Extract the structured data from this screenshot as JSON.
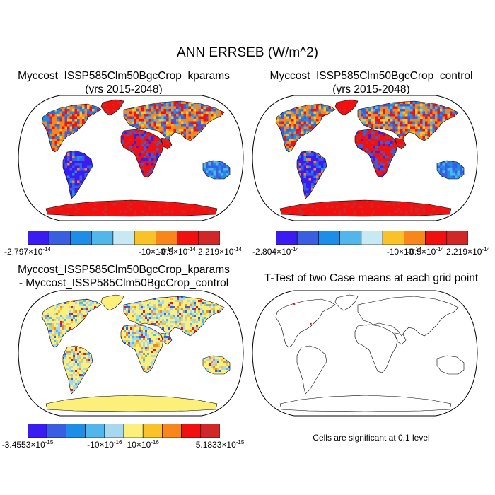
{
  "title": "ANN ERRSEB (W/m^2)",
  "panels": [
    {
      "title_line1": "Myccost_ISSP585Clm50BgcCrop_kparams",
      "title_line2": "(yrs 2015-2048)",
      "type": "field",
      "colorbar": {
        "colors": [
          "#3a1cf2",
          "#3a5ee0",
          "#1e8de8",
          "#52b6ea",
          "#c8e8f4",
          "#f8c228",
          "#f8861a",
          "#f01010",
          "#d02828"
        ],
        "labels": [
          {
            "mant": "-2.797",
            "exp": "-14",
            "tick": 0
          },
          {
            "mant": "-10",
            "exp": "-14",
            "tick": 6,
            "pow": true
          },
          {
            "mant": "-0.5",
            "exp": "-14",
            "tick": 7
          },
          {
            "mant": "2.219",
            "exp": "-14",
            "tick": 9
          }
        ]
      }
    },
    {
      "title_line1": "Myccost_ISSP585Clm50BgcCrop_control",
      "title_line2": "(yrs 2015-2048)",
      "type": "field",
      "colorbar": {
        "colors": [
          "#3a1cf2",
          "#3a5ee0",
          "#1e8de8",
          "#52b6ea",
          "#c8e8f4",
          "#f8c228",
          "#f8861a",
          "#f01010",
          "#d02828"
        ],
        "labels": [
          {
            "mant": "-2.804",
            "exp": "-14",
            "tick": 0
          },
          {
            "mant": "-10",
            "exp": "-14",
            "tick": 6,
            "pow": true
          },
          {
            "mant": "-0.5",
            "exp": "-14",
            "tick": 7
          },
          {
            "mant": "2.219",
            "exp": "-14",
            "tick": 9
          }
        ]
      }
    },
    {
      "title_line1": "Myccost_ISSP585Clm50BgcCrop_kparams",
      "title_line2": "- Myccost_ISSP585Clm50BgcCrop_control",
      "type": "diff",
      "colorbar": {
        "colors": [
          "#3a1cf2",
          "#3a5ee0",
          "#1e8de8",
          "#52b6ea",
          "#a8d8ee",
          "#fcf07a",
          "#f8c228",
          "#f8861a",
          "#f01010",
          "#d02828"
        ],
        "labels": [
          {
            "mant": "-3.4553",
            "exp": "-15",
            "tick": 0
          },
          {
            "mant": "-10",
            "exp": "-16",
            "tick": 4,
            "pow": true
          },
          {
            "mant": "10",
            "exp": "-16",
            "tick": 6,
            "pow": true
          },
          {
            "mant": "5.1833",
            "exp": "-15",
            "tick": 10
          }
        ]
      }
    },
    {
      "title_line1": "T-Test of two Case means at each grid point",
      "title_line2": "",
      "type": "ttest",
      "note": "Cells are significant at 0.1 level"
    }
  ]
}
